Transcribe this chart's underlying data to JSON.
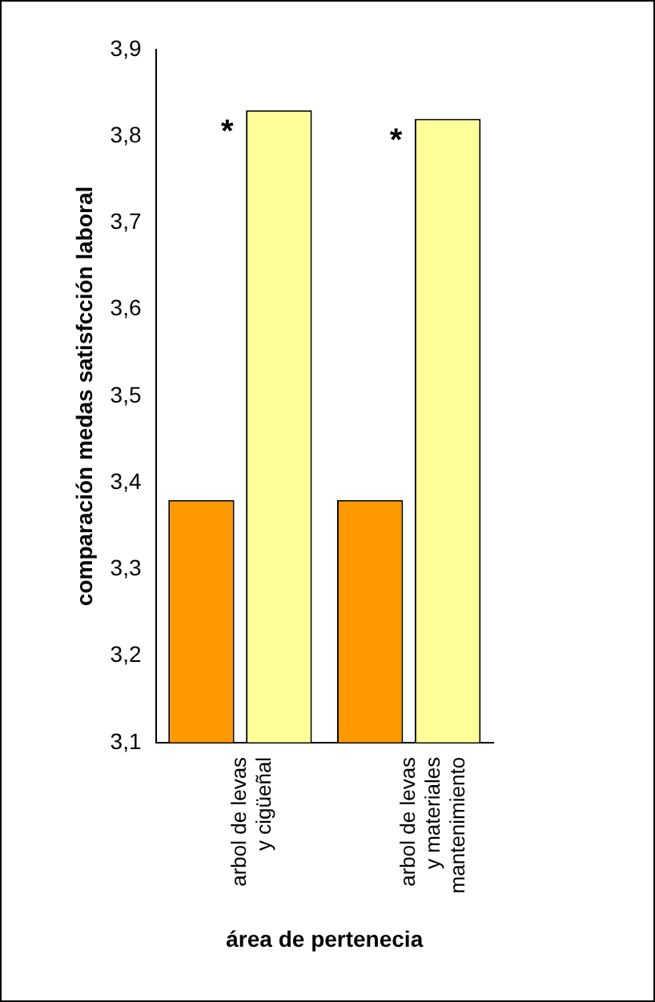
{
  "chart_data": {
    "type": "bar",
    "xlabel": "área de pertenecia",
    "ylabel": "comparación medas satisfcción laboral",
    "categories": [
      "arbol de levas\ny cigüeñal",
      "arbol de levas\ny materiales\nmantenimiento"
    ],
    "series": [
      {
        "color": "#ff9900",
        "values": [
          3.38,
          3.38
        ]
      },
      {
        "color": "#ffff99",
        "values": [
          3.83,
          3.82
        ]
      }
    ],
    "ylim": [
      3.1,
      3.9
    ],
    "yticks": [
      {
        "value": 3.1,
        "label": "3,1"
      },
      {
        "value": 3.2,
        "label": "3,2"
      },
      {
        "value": 3.3,
        "label": "3,3"
      },
      {
        "value": 3.4,
        "label": "3,4"
      },
      {
        "value": 3.5,
        "label": "3,5"
      },
      {
        "value": 3.6,
        "label": "3,6"
      },
      {
        "value": 3.7,
        "label": "3,7"
      },
      {
        "value": 3.8,
        "label": "3,8"
      },
      {
        "value": 3.9,
        "label": "3,9"
      }
    ],
    "annotations": [
      {
        "text": "*",
        "x": "arbol de levas\ny cigüeñal",
        "y": 3.83
      },
      {
        "text": "*",
        "x": "arbol de levas\ny materiales\nmantenimiento",
        "y": 3.82
      }
    ],
    "grid": false,
    "legend": false
  }
}
